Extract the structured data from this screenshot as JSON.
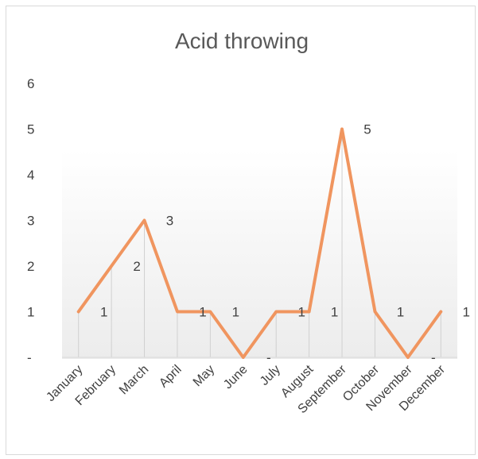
{
  "chart_data": {
    "type": "line",
    "title": "Acid throwing",
    "categories": [
      "January",
      "February",
      "March",
      "April",
      "May",
      "June",
      "July",
      "August",
      "September",
      "October",
      "November",
      "December"
    ],
    "series": [
      {
        "values": [
          1,
          2,
          3,
          1,
          1,
          0,
          1,
          1,
          5,
          1,
          0,
          1
        ],
        "color": "#f0955f"
      }
    ],
    "data_labels": [
      "1",
      "2",
      "3",
      "1",
      "1",
      "-",
      "1",
      "1",
      "5",
      "1",
      "-",
      "1"
    ],
    "y_ticks": [
      {
        "value": 0,
        "label": "-"
      },
      {
        "value": 1,
        "label": "1"
      },
      {
        "value": 2,
        "label": "2"
      },
      {
        "value": 3,
        "label": "3"
      },
      {
        "value": 4,
        "label": "4"
      },
      {
        "value": 5,
        "label": "5"
      },
      {
        "value": 6,
        "label": "6"
      }
    ],
    "ylim": [
      0,
      6
    ],
    "grid": false,
    "legend": "none",
    "drop_lines": true
  }
}
